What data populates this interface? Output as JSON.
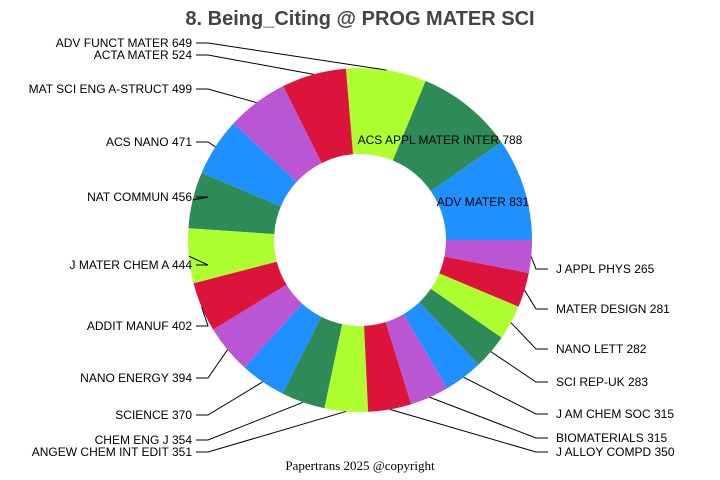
{
  "chart_data": {
    "type": "pie",
    "subtype": "donut",
    "title": "8. Being_Citing @ PROG MATER SCI",
    "footer": "Papertrans 2025 @copyright",
    "direction": "counterclockwise from 3 o'clock",
    "colors": [
      "#1E90FF",
      "#2E8B57",
      "#ADFF2F",
      "#DC143C",
      "#BA55D3"
    ],
    "slices": [
      {
        "label": "ADV MATER",
        "value": 831
      },
      {
        "label": "ACS APPL MATER INTER",
        "value": 788
      },
      {
        "label": "ADV FUNCT MATER",
        "value": 649
      },
      {
        "label": "ACTA MATER",
        "value": 524
      },
      {
        "label": "MAT SCI ENG A-STRUCT",
        "value": 499
      },
      {
        "label": "ACS NANO",
        "value": 471
      },
      {
        "label": "NAT COMMUN",
        "value": 456
      },
      {
        "label": "J MATER CHEM A",
        "value": 444
      },
      {
        "label": "ADDIT MANUF",
        "value": 402
      },
      {
        "label": "NANO ENERGY",
        "value": 394
      },
      {
        "label": "SCIENCE",
        "value": 370
      },
      {
        "label": "CHEM ENG J",
        "value": 354
      },
      {
        "label": "ANGEW CHEM INT EDIT",
        "value": 351
      },
      {
        "label": "J ALLOY COMPD",
        "value": 350
      },
      {
        "label": "BIOMATERIALS",
        "value": 315
      },
      {
        "label": "J AM CHEM SOC",
        "value": 315
      },
      {
        "label": "SCI REP-UK",
        "value": 283
      },
      {
        "label": "NANO LETT",
        "value": 282
      },
      {
        "label": "MATER DESIGN",
        "value": 281
      },
      {
        "label": "J APPL PHYS",
        "value": 265
      }
    ]
  }
}
